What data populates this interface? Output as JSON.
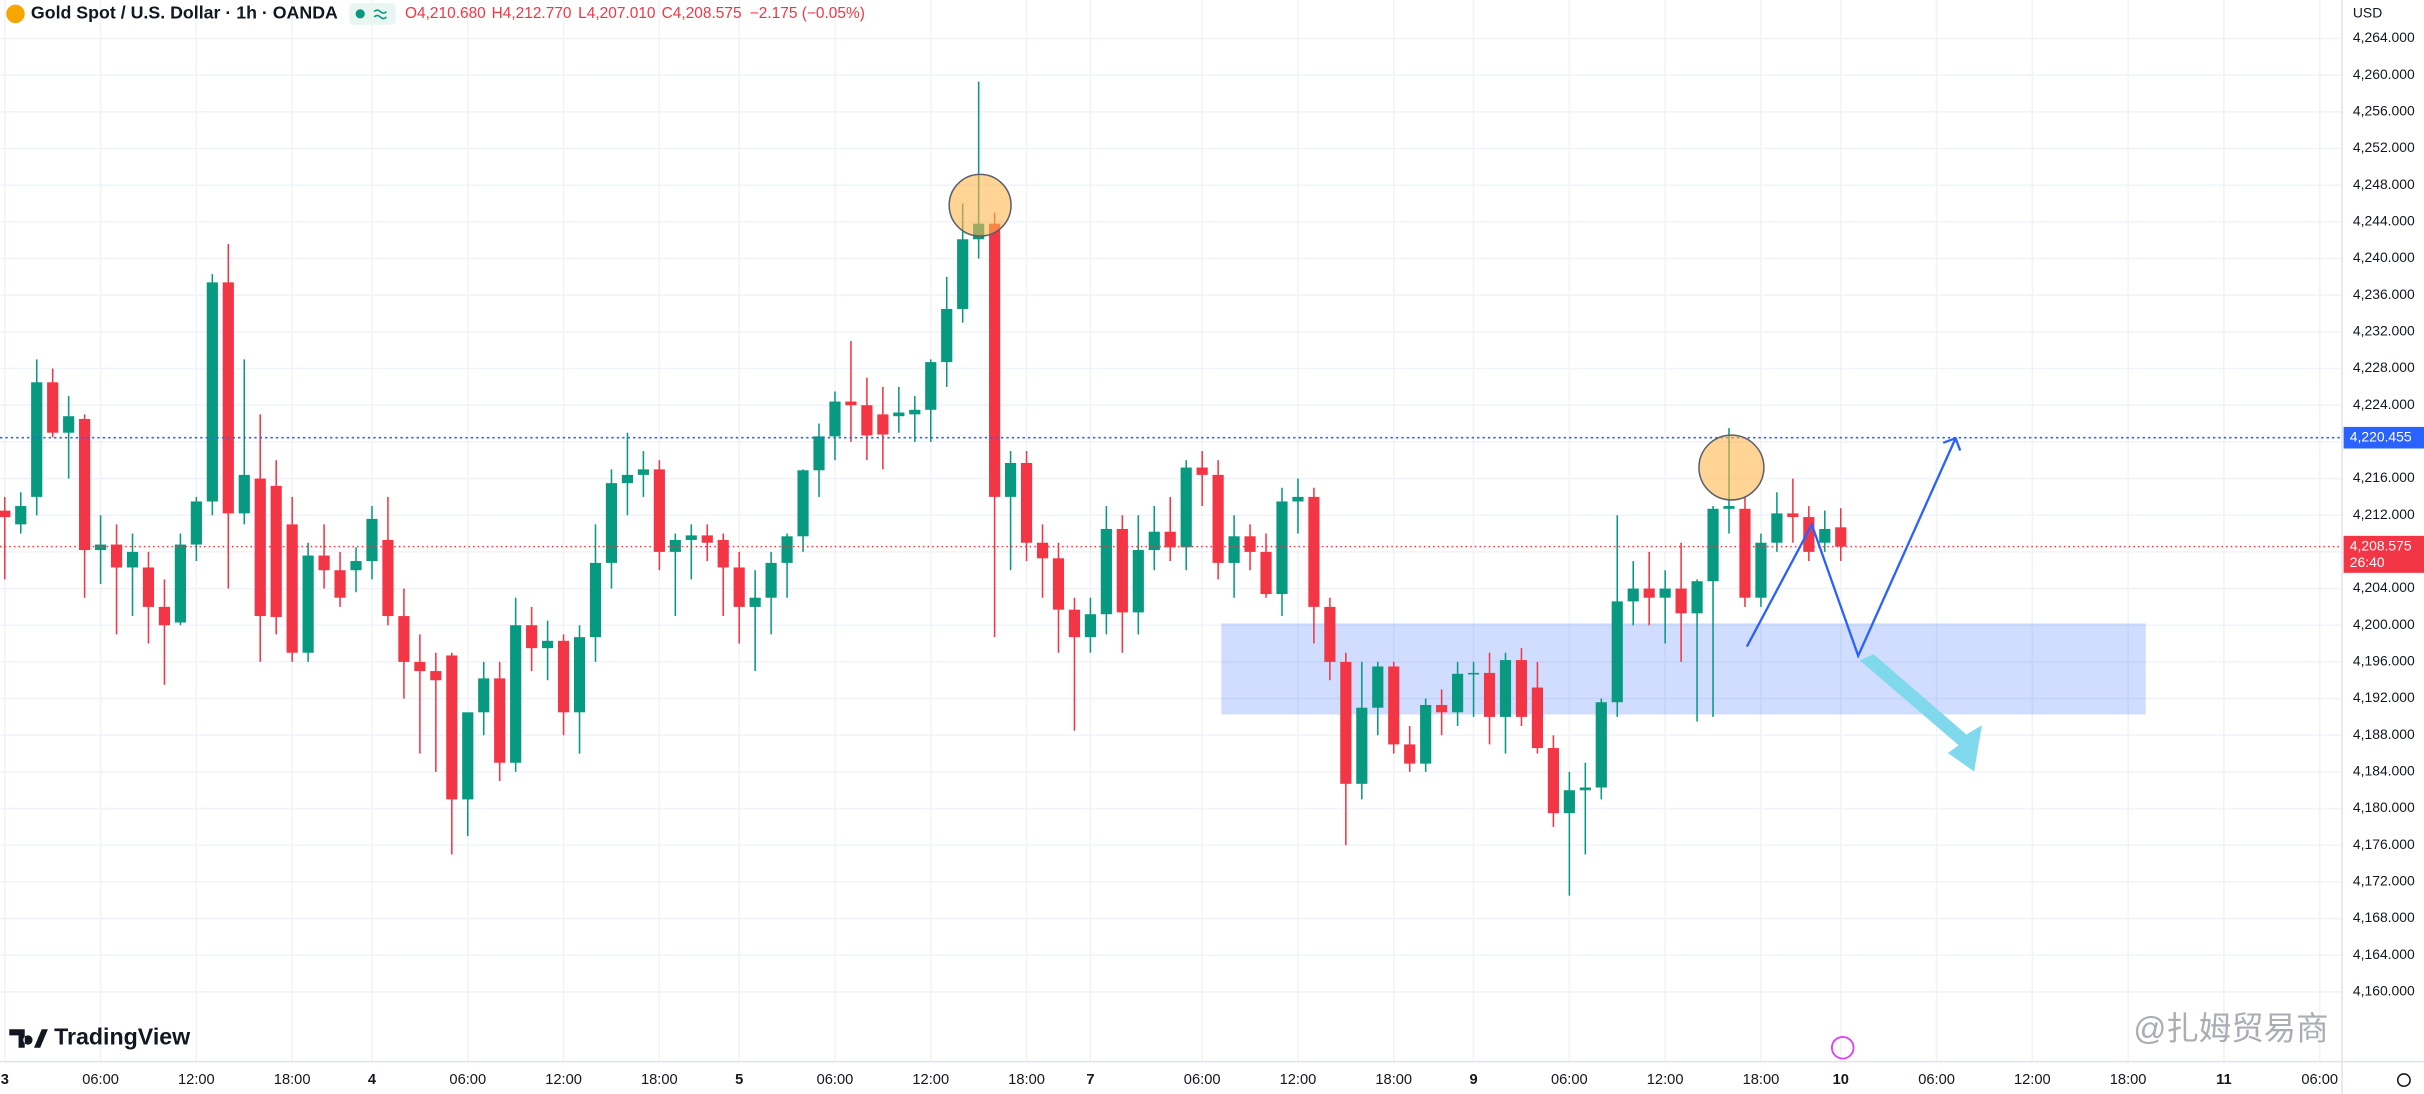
{
  "chart_data": {
    "type": "candlestick",
    "title": "Gold Spot / U.S. Dollar · 1h · OANDA",
    "header": {
      "open": "O4,210.680",
      "high": "H4,212.770",
      "low": "L4,207.010",
      "close": "C4,208.575",
      "change": "−2.175 (−0.05%)"
    },
    "currency": "USD",
    "brand": "TradingView",
    "watermark": "@扎姆贸易商",
    "up_color": "#089981",
    "down_color": "#f23645",
    "grid": true,
    "xlim": [
      -0.3,
      146.4
    ],
    "ylim": [
      4152.4,
      4268.2
    ],
    "xticks": [
      {
        "value": 0,
        "label": "3"
      },
      {
        "value": 6,
        "label": "06:00"
      },
      {
        "value": 12,
        "label": "12:00"
      },
      {
        "value": 18,
        "label": "18:00"
      },
      {
        "value": 23,
        "label": "4"
      },
      {
        "value": 29,
        "label": "06:00"
      },
      {
        "value": 35,
        "label": "12:00"
      },
      {
        "value": 41,
        "label": "18:00"
      },
      {
        "value": 46,
        "label": "5"
      },
      {
        "value": 52,
        "label": "06:00"
      },
      {
        "value": 58,
        "label": "12:00"
      },
      {
        "value": 64,
        "label": "18:00"
      },
      {
        "value": 68,
        "label": "7"
      },
      {
        "value": 75,
        "label": "06:00"
      },
      {
        "value": 81,
        "label": "12:00"
      },
      {
        "value": 87,
        "label": "18:00"
      },
      {
        "value": 92,
        "label": "9"
      },
      {
        "value": 98,
        "label": "06:00"
      },
      {
        "value": 104,
        "label": "12:00"
      },
      {
        "value": 110,
        "label": "18:00"
      },
      {
        "value": 115,
        "label": "10"
      },
      {
        "value": 121,
        "label": "06:00"
      },
      {
        "value": 127,
        "label": "12:00"
      },
      {
        "value": 133,
        "label": "18:00"
      },
      {
        "value": 139,
        "label": "11"
      },
      {
        "value": 145,
        "label": "06:00"
      }
    ],
    "yticks": [
      {
        "value": 4160,
        "label": "4,160.000"
      },
      {
        "value": 4164,
        "label": "4,164.000"
      },
      {
        "value": 4168,
        "label": "4,168.000"
      },
      {
        "value": 4172,
        "label": "4,172.000"
      },
      {
        "value": 4176,
        "label": "4,176.000"
      },
      {
        "value": 4180,
        "label": "4,180.000"
      },
      {
        "value": 4184,
        "label": "4,184.000"
      },
      {
        "value": 4188,
        "label": "4,188.000"
      },
      {
        "value": 4192,
        "label": "4,192.000"
      },
      {
        "value": 4196,
        "label": "4,196.000"
      },
      {
        "value": 4200,
        "label": "4,200.000"
      },
      {
        "value": 4204,
        "label": "4,204.000"
      },
      {
        "value": 4208,
        "label": "4,208.000"
      },
      {
        "value": 4212,
        "label": "4,212.000"
      },
      {
        "value": 4216,
        "label": "4,216.000"
      },
      {
        "value": 4220,
        "label": "4,220.000"
      },
      {
        "value": 4224,
        "label": "4,224.000"
      },
      {
        "value": 4228,
        "label": "4,228.000"
      },
      {
        "value": 4232,
        "label": "4,232.000"
      },
      {
        "value": 4236,
        "label": "4,236.000"
      },
      {
        "value": 4240,
        "label": "4,240.000"
      },
      {
        "value": 4244,
        "label": "4,244.000"
      },
      {
        "value": 4248,
        "label": "4,248.000"
      },
      {
        "value": 4252,
        "label": "4,252.000"
      },
      {
        "value": 4256,
        "label": "4,256.000"
      },
      {
        "value": 4260,
        "label": "4,260.000"
      },
      {
        "value": 4264,
        "label": "4,264.000"
      }
    ],
    "open": [
      4212.5,
      4211,
      4214,
      4226.5,
      4221,
      4222.5,
      4208.2,
      4208.8,
      4206.3,
      4206.3,
      4202,
      4200.3,
      4208.8,
      4213.5,
      4237.4,
      4212.2,
      4216,
      4215.2,
      4211,
      4197,
      4207.6,
      4206,
      4206,
      4207,
      4209.3,
      4201,
      4196,
      4195,
      4196.7,
      4181,
      4190.5,
      4194.2,
      4185,
      4200,
      4197.5,
      4198.3,
      4190.5,
      4198.7,
      4206.8,
      4215.5,
      4216.4,
      4217,
      4208,
      4209.3,
      4209.8,
      4209.3,
      4206.3,
      4202,
      4203,
      4206.8,
      4209.7,
      4216.9,
      4220.6,
      4224.4,
      4224,
      4223,
      4222.8,
      4223,
      4223.5,
      4228.7,
      4234.5,
      4242.1,
      4243.8,
      4214,
      4217.7,
      4209,
      4207.3,
      4201.7,
      4198.7,
      4201.2,
      4210.5,
      4201.4,
      4208.2,
      4210.2,
      4208.5,
      4217.2,
      4216.4,
      4206.8,
      4209.7,
      4208,
      4203.4,
      4213.5,
      4214,
      4202,
      4196,
      4182.7,
      4191,
      4195.5,
      4187,
      4184.9,
      4191.3,
      4190.5,
      4194.7,
      4194.8,
      4190,
      4196.2,
      4193.2,
      4186.6,
      4179.5,
      4182,
      4182.3,
      4191.6,
      4202.6,
      4204,
      4203,
      4204,
      4201.3,
      4204.8,
      4212.7,
      4212.7,
      4203,
      4209,
      4212.2,
      4211.8,
      4209,
      4210.68
    ],
    "high": [
      4214,
      4214.5,
      4229,
      4228,
      4225,
      4223,
      4212,
      4211,
      4210,
      4208,
      4205,
      4210,
      4214,
      4238.3,
      4241.6,
      4229,
      4223,
      4218,
      4214,
      4209,
      4211,
      4208,
      4208.5,
      4213,
      4214,
      4204,
      4199,
      4197,
      4197,
      4190,
      4196,
      4196,
      4203,
      4202,
      4200.5,
      4199,
      4200,
      4211,
      4217,
      4221,
      4219,
      4218,
      4210,
      4211,
      4211,
      4210,
      4208,
      4206,
      4208,
      4210,
      4217,
      4222,
      4225.5,
      4231,
      4227,
      4226,
      4226,
      4225,
      4229,
      4238,
      4246,
      4259.3,
      4245,
      4219,
      4219,
      4211,
      4209,
      4203,
      4203,
      4213,
      4212,
      4212,
      4213,
      4214,
      4218,
      4219,
      4218,
      4212,
      4211,
      4210,
      4215,
      4216,
      4215,
      4203,
      4197,
      4196,
      4196,
      4196,
      4189,
      4192,
      4193,
      4196,
      4196,
      4197,
      4197,
      4197.5,
      4196,
      4188,
      4184,
      4185,
      4192,
      4212,
      4207,
      4208,
      4206,
      4209,
      4205,
      4213,
      4221.5,
      4214,
      4210,
      4214.5,
      4216,
      4213,
      4212.5,
      4212.77
    ],
    "low": [
      4205,
      4210,
      4212,
      4220.5,
      4216,
      4203,
      4204.5,
      4199,
      4201,
      4198,
      4193.5,
      4200,
      4207,
      4212,
      4204,
      4211,
      4196,
      4199,
      4196,
      4196,
      4204,
      4202,
      4203.6,
      4205,
      4200,
      4192,
      4186,
      4184,
      4175,
      4177,
      4188,
      4183,
      4184,
      4195,
      4194,
      4188,
      4186,
      4196,
      4204,
      4212,
      4214,
      4206,
      4201,
      4205,
      4207,
      4201,
      4198,
      4195,
      4199,
      4203,
      4208,
      4214,
      4218,
      4220,
      4218,
      4217,
      4221,
      4220,
      4220,
      4226,
      4233,
      4240,
      4198.7,
      4206,
      4207,
      4203,
      4197,
      4188.5,
      4197,
      4199,
      4197,
      4199,
      4206,
      4207,
      4206,
      4213,
      4205,
      4203,
      4206,
      4203,
      4201,
      4210,
      4198,
      4194,
      4176,
      4181,
      4188,
      4186,
      4184,
      4184,
      4188,
      4189,
      4190,
      4187,
      4186,
      4189,
      4186,
      4178,
      4170.5,
      4175,
      4181,
      4190,
      4200,
      4200,
      4198,
      4196,
      4189.5,
      4190,
      4210,
      4202,
      4202,
      4208,
      4209,
      4207,
      4208,
      4207.01
    ],
    "close": [
      4211.8,
      4213,
      4226.5,
      4221,
      4222.8,
      4208.2,
      4208.8,
      4206.3,
      4208,
      4202,
      4200,
      4208.8,
      4213.5,
      4237.4,
      4212.2,
      4216.4,
      4201,
      4200.9,
      4197,
      4207.6,
      4206,
      4203,
      4207,
      4211.6,
      4201,
      4196,
      4195,
      4194,
      4181,
      4190.5,
      4194.2,
      4185,
      4200,
      4197.5,
      4198.3,
      4190.5,
      4198.7,
      4206.8,
      4215.5,
      4216.4,
      4217,
      4208,
      4209.3,
      4209.8,
      4209,
      4206.3,
      4202,
      4203,
      4206.8,
      4209.7,
      4216.9,
      4220.6,
      4224.4,
      4224,
      4220.7,
      4220.8,
      4223.2,
      4223.5,
      4228.7,
      4234.5,
      4242.1,
      4243.8,
      4214,
      4217.7,
      4209,
      4207.3,
      4201.7,
      4198.7,
      4201.2,
      4210.5,
      4201.4,
      4208.2,
      4210.2,
      4208.5,
      4217.2,
      4216.4,
      4206.8,
      4209.7,
      4208,
      4203.4,
      4213.5,
      4214,
      4202,
      4196,
      4182.7,
      4191,
      4195.5,
      4187,
      4184.9,
      4191.3,
      4190.5,
      4194.7,
      4194.8,
      4190,
      4196.2,
      4190,
      4186.6,
      4179.5,
      4182,
      4182.3,
      4191.6,
      4202.6,
      4204,
      4203,
      4204,
      4201.3,
      4204.8,
      4212.7,
      4213,
      4203,
      4209,
      4212.2,
      4211.8,
      4208,
      4210.5,
      4208.575
    ],
    "last_price": {
      "value": 4208.575,
      "label": "4,208.575"
    },
    "countdown": "26:40",
    "level_line": {
      "value": 4220.455,
      "label": "4,220.455"
    }
  }
}
